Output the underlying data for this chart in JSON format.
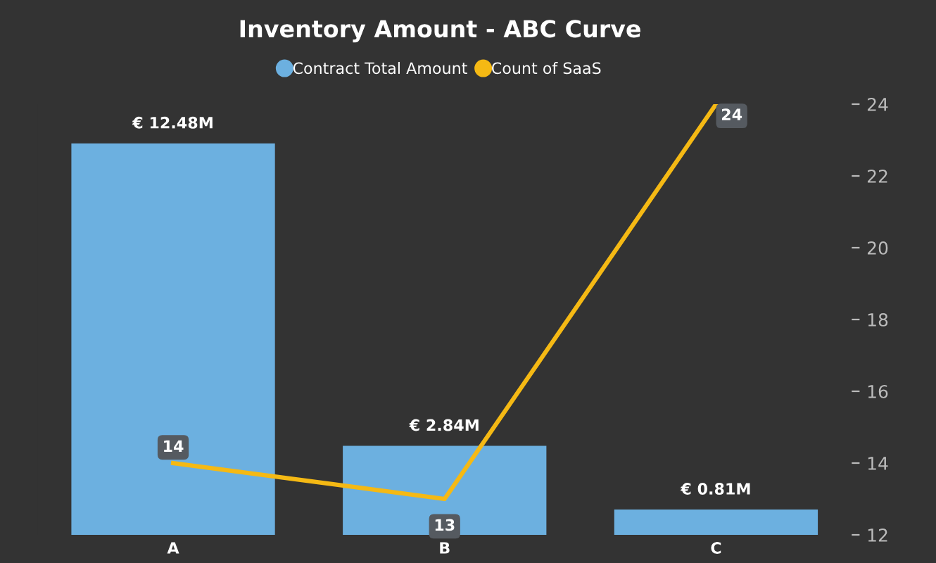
{
  "chart_data": {
    "type": "bar",
    "title": "Inventory Amount - ABC Curve",
    "categories": [
      "A",
      "B",
      "C"
    ],
    "series": [
      {
        "name": "Contract Total Amount",
        "color": "#6cb0e0",
        "values": [
          12.48,
          2.84,
          0.81
        ],
        "value_labels": [
          "€ 12.48M",
          "€ 2.84M",
          "€ 0.81M"
        ]
      },
      {
        "name": "Count of SaaS",
        "type": "line",
        "axis": "y2",
        "color": "#f5b914",
        "values": [
          14,
          13,
          24
        ],
        "value_labels": [
          "14",
          "13",
          "24"
        ]
      }
    ],
    "y2lim": [
      12,
      24
    ],
    "y2ticks": [
      12,
      14,
      16,
      18,
      20,
      22,
      24
    ],
    "legend": "top",
    "grid": false,
    "marker": "none"
  }
}
